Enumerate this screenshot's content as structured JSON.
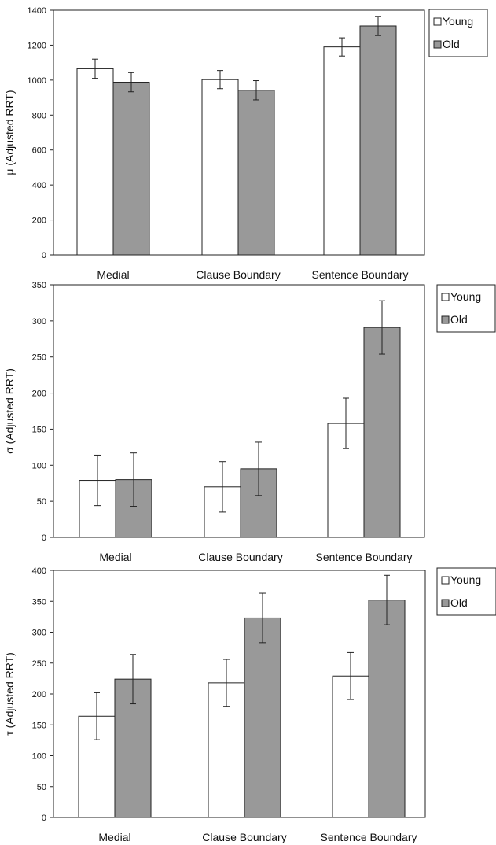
{
  "chart_data": [
    {
      "type": "bar",
      "ylabel": "μ (Adjusted RRT)",
      "ylim": [
        0,
        1400
      ],
      "yticks": [
        0,
        200,
        400,
        600,
        800,
        1000,
        1200,
        1400
      ],
      "categories": [
        "Medial",
        "Clause Boundary",
        "Sentence Boundary"
      ],
      "series": [
        {
          "name": "Young",
          "color": "#ffffff",
          "values": [
            1065,
            1003,
            1190
          ],
          "err": [
            55,
            52,
            52
          ]
        },
        {
          "name": "Old",
          "color": "#999999",
          "values": [
            988,
            942,
            1310
          ],
          "err": [
            55,
            55,
            55
          ]
        }
      ],
      "legend": "top-right",
      "grid": false
    },
    {
      "type": "bar",
      "ylabel": "σ (Adjusted RRT)",
      "ylim": [
        0,
        350
      ],
      "yticks": [
        0,
        50,
        100,
        150,
        200,
        250,
        300,
        350
      ],
      "categories": [
        "Medial",
        "Clause Boundary",
        "Sentence Boundary"
      ],
      "series": [
        {
          "name": "Young",
          "color": "#ffffff",
          "values": [
            79,
            70,
            158
          ],
          "err": [
            35,
            35,
            35
          ]
        },
        {
          "name": "Old",
          "color": "#999999",
          "values": [
            80,
            95,
            291
          ],
          "err": [
            37,
            37,
            37
          ]
        }
      ],
      "legend": "top-right",
      "grid": false
    },
    {
      "type": "bar",
      "ylabel": "τ (Adjusted RRT)",
      "ylim": [
        0,
        400
      ],
      "yticks": [
        0,
        50,
        100,
        150,
        200,
        250,
        300,
        350,
        400
      ],
      "categories": [
        "Medial",
        "Clause Boundary",
        "Sentence Boundary"
      ],
      "series": [
        {
          "name": "Young",
          "color": "#ffffff",
          "values": [
            164,
            218,
            229
          ],
          "err": [
            38,
            38,
            38
          ]
        },
        {
          "name": "Old",
          "color": "#999999",
          "values": [
            224,
            323,
            352
          ],
          "err": [
            40,
            40,
            40
          ]
        }
      ],
      "legend": "top-right",
      "grid": false
    }
  ]
}
